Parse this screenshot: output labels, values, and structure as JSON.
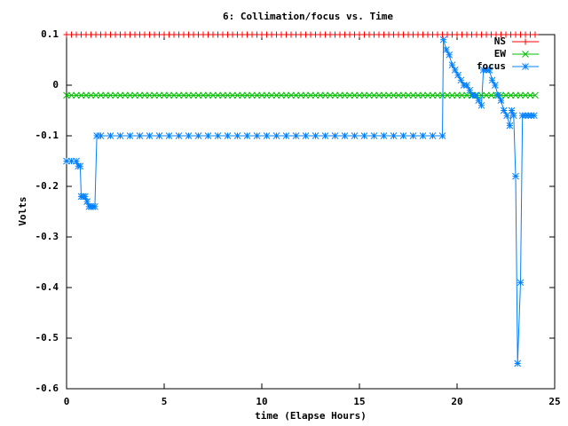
{
  "chart_data": {
    "type": "line",
    "title": "6: Collimation/focus vs. Time",
    "x_label": "time (Elapse Hours)",
    "y_label": "Volts",
    "xlim": [
      0,
      25
    ],
    "xticks": [
      0,
      5,
      10,
      15,
      20,
      25
    ],
    "ylim": [
      -0.6,
      0.1
    ],
    "yticks": [
      0.1,
      0,
      -0.1,
      -0.2,
      -0.3,
      -0.4,
      -0.5,
      -0.6
    ],
    "legend": "top-right",
    "x": [
      0,
      0.25,
      0.5,
      0.75,
      1,
      1.25,
      1.5,
      1.75,
      2,
      2.25,
      2.5,
      2.75,
      3,
      3.25,
      3.5,
      3.75,
      4,
      4.25,
      4.5,
      4.75,
      5,
      5.25,
      5.5,
      5.75,
      6,
      6.25,
      6.5,
      6.75,
      7,
      7.25,
      7.5,
      7.75,
      8,
      8.25,
      8.5,
      8.75,
      9,
      9.25,
      9.5,
      9.75,
      10,
      10.25,
      10.5,
      10.75,
      11,
      11.25,
      11.5,
      11.75,
      12,
      12.25,
      12.5,
      12.75,
      13,
      13.25,
      13.5,
      13.75,
      14,
      14.25,
      14.5,
      14.75,
      15,
      15.25,
      15.5,
      15.75,
      16,
      16.25,
      16.5,
      16.75,
      17,
      17.25,
      17.5,
      17.75,
      18,
      18.25,
      18.5,
      18.75,
      19,
      19.25,
      19.5,
      19.75,
      20,
      20.25,
      20.5,
      20.75,
      21,
      21.25,
      21.5,
      21.75,
      22,
      22.25,
      22.5,
      22.75,
      23,
      23.25,
      23.5,
      23.75,
      24
    ],
    "series": [
      {
        "name": "NS",
        "color": "#ff0000",
        "marker": "plus",
        "values": [
          0.1,
          0.1,
          0.1,
          0.1,
          0.1,
          0.1,
          0.1,
          0.1,
          0.1,
          0.1,
          0.1,
          0.1,
          0.1,
          0.1,
          0.1,
          0.1,
          0.1,
          0.1,
          0.1,
          0.1,
          0.1,
          0.1,
          0.1,
          0.1,
          0.1,
          0.1,
          0.1,
          0.1,
          0.1,
          0.1,
          0.1,
          0.1,
          0.1,
          0.1,
          0.1,
          0.1,
          0.1,
          0.1,
          0.1,
          0.1,
          0.1,
          0.1,
          0.1,
          0.1,
          0.1,
          0.1,
          0.1,
          0.1,
          0.1,
          0.1,
          0.1,
          0.1,
          0.1,
          0.1,
          0.1,
          0.1,
          0.1,
          0.1,
          0.1,
          0.1,
          0.1,
          0.1,
          0.1,
          0.1,
          0.1,
          0.1,
          0.1,
          0.1,
          0.1,
          0.1,
          0.1,
          0.1,
          0.1,
          0.1,
          0.1,
          0.1,
          0.1,
          0.1,
          0.1,
          0.1,
          0.1,
          0.1,
          0.1,
          0.1,
          0.1,
          0.1,
          0.1,
          0.1,
          0.1,
          0.1,
          0.1,
          0.1,
          0.1,
          0.1,
          0.1,
          0.1,
          0.1
        ]
      },
      {
        "name": "EW",
        "color": "#00c000",
        "marker": "cross",
        "values": [
          -0.02,
          -0.02,
          -0.02,
          -0.02,
          -0.02,
          -0.02,
          -0.02,
          -0.02,
          -0.02,
          -0.02,
          -0.02,
          -0.02,
          -0.02,
          -0.02,
          -0.02,
          -0.02,
          -0.02,
          -0.02,
          -0.02,
          -0.02,
          -0.02,
          -0.02,
          -0.02,
          -0.02,
          -0.02,
          -0.02,
          -0.02,
          -0.02,
          -0.02,
          -0.02,
          -0.02,
          -0.02,
          -0.02,
          -0.02,
          -0.02,
          -0.02,
          -0.02,
          -0.02,
          -0.02,
          -0.02,
          -0.02,
          -0.02,
          -0.02,
          -0.02,
          -0.02,
          -0.02,
          -0.02,
          -0.02,
          -0.02,
          -0.02,
          -0.02,
          -0.02,
          -0.02,
          -0.02,
          -0.02,
          -0.02,
          -0.02,
          -0.02,
          -0.02,
          -0.02,
          -0.02,
          -0.02,
          -0.02,
          -0.02,
          -0.02,
          -0.02,
          -0.02,
          -0.02,
          -0.02,
          -0.02,
          -0.02,
          -0.02,
          -0.02,
          -0.02,
          -0.02,
          -0.02,
          -0.02,
          -0.02,
          -0.02,
          -0.02,
          -0.02,
          -0.02,
          -0.02,
          -0.02,
          -0.02,
          -0.02,
          -0.02,
          -0.02,
          -0.02,
          -0.02,
          -0.02,
          -0.02,
          -0.02,
          -0.02,
          -0.02,
          -0.02,
          -0.02
        ]
      },
      {
        "name": "focus",
        "color": "#0080ff",
        "marker": "star",
        "x": [
          0,
          0.25,
          0.5,
          0.6,
          0.7,
          0.75,
          0.85,
          0.95,
          1.05,
          1.15,
          1.25,
          1.35,
          1.45,
          1.55,
          1.75,
          2.25,
          2.75,
          3.25,
          3.75,
          4.25,
          4.75,
          5.25,
          5.75,
          6.25,
          6.75,
          7.25,
          7.75,
          8.25,
          8.75,
          9.25,
          9.75,
          10.25,
          10.75,
          11.25,
          11.75,
          12.25,
          12.75,
          13.25,
          13.75,
          14.25,
          14.75,
          15.25,
          15.75,
          16.25,
          16.75,
          17.25,
          17.75,
          18.25,
          18.75,
          19.25,
          19.3,
          19.45,
          19.6,
          19.75,
          19.9,
          20.05,
          20.2,
          20.35,
          20.5,
          20.65,
          20.8,
          20.95,
          21.1,
          21.25,
          21.35,
          21.5,
          21.65,
          21.8,
          21.95,
          22.1,
          22.25,
          22.4,
          22.55,
          22.7,
          22.8,
          22.9,
          23.0,
          23.1,
          23.25,
          23.35,
          23.5,
          23.65,
          23.8,
          23.95
        ],
        "values": [
          -0.15,
          -0.15,
          -0.15,
          -0.16,
          -0.16,
          -0.22,
          -0.22,
          -0.22,
          -0.23,
          -0.24,
          -0.24,
          -0.24,
          -0.24,
          -0.1,
          -0.1,
          -0.1,
          -0.1,
          -0.1,
          -0.1,
          -0.1,
          -0.1,
          -0.1,
          -0.1,
          -0.1,
          -0.1,
          -0.1,
          -0.1,
          -0.1,
          -0.1,
          -0.1,
          -0.1,
          -0.1,
          -0.1,
          -0.1,
          -0.1,
          -0.1,
          -0.1,
          -0.1,
          -0.1,
          -0.1,
          -0.1,
          -0.1,
          -0.1,
          -0.1,
          -0.1,
          -0.1,
          -0.1,
          -0.1,
          -0.1,
          -0.1,
          0.09,
          0.07,
          0.06,
          0.04,
          0.03,
          0.02,
          0.01,
          0,
          0,
          -0.01,
          -0.02,
          -0.02,
          -0.03,
          -0.04,
          0.03,
          0.03,
          0.03,
          0.01,
          0,
          -0.02,
          -0.03,
          -0.05,
          -0.06,
          -0.08,
          -0.05,
          -0.06,
          -0.18,
          -0.55,
          -0.39,
          -0.06,
          -0.06,
          -0.06,
          -0.06,
          -0.06
        ]
      }
    ]
  }
}
